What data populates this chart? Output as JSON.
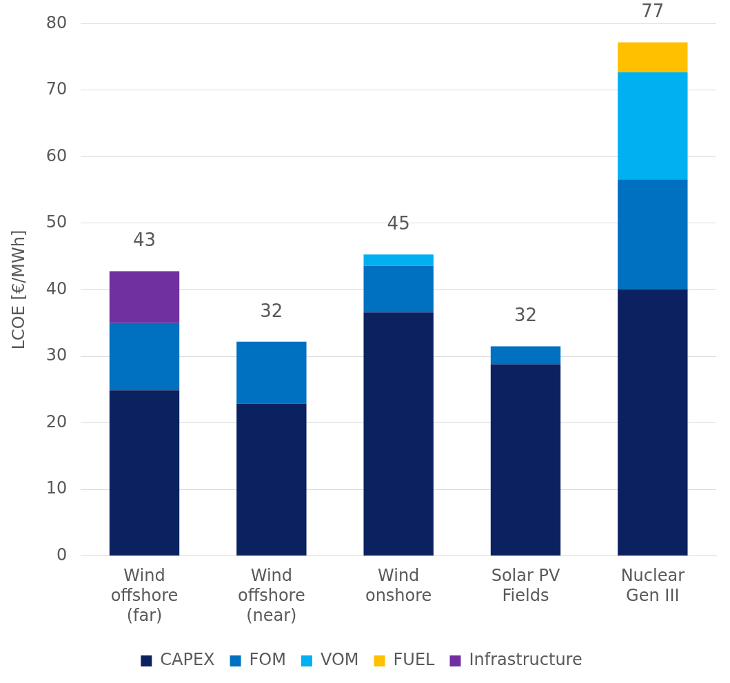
{
  "chart_data": {
    "type": "bar",
    "stacked": true,
    "ylabel": "LCOE [€/MWh]",
    "categories": [
      "Wind\noffshore\n(far)",
      "Wind\noffshore\n(near)",
      "Wind\nonshore",
      "Solar PV\nFields",
      "Nuclear\nGen III"
    ],
    "series": [
      {
        "name": "CAPEX",
        "color": "#0b2160",
        "values": [
          24.9,
          22.9,
          36.6,
          28.8,
          40.1
        ]
      },
      {
        "name": "FOM",
        "color": "#0070c0",
        "values": [
          10.1,
          9.3,
          7.0,
          2.7,
          16.5
        ]
      },
      {
        "name": "VOM",
        "color": "#00b0f0",
        "values": [
          null,
          null,
          1.7,
          null,
          16.1
        ]
      },
      {
        "name": "FUEL",
        "color": "#ffc000",
        "values": [
          null,
          null,
          null,
          null,
          4.5
        ]
      },
      {
        "name": "Infrastructure",
        "color": "#7030a0",
        "values": [
          7.8,
          null,
          null,
          null,
          null
        ]
      }
    ],
    "totals": [
      "43",
      "32",
      "45",
      "32",
      "77"
    ],
    "ylim": [
      0,
      80
    ],
    "yticks": [
      0,
      10,
      20,
      30,
      40,
      50,
      60,
      70,
      80
    ],
    "grid": "y",
    "legend": "bottom"
  }
}
